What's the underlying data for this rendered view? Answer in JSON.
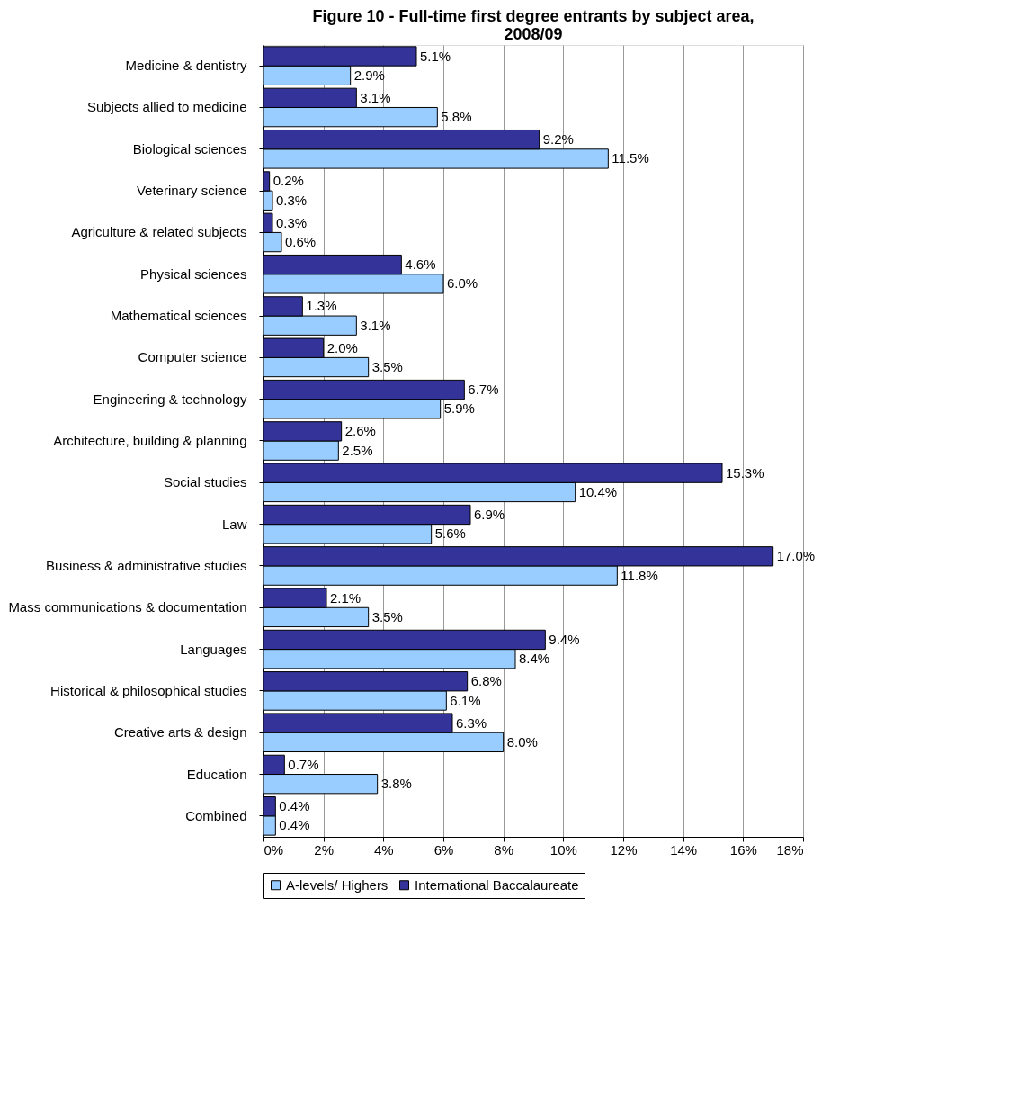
{
  "chart_data": {
    "type": "bar",
    "orientation": "horizontal",
    "title": "Figure 10 - Full-time first degree entrants by subject area, 2008/09",
    "categories": [
      "Medicine & dentistry",
      "Subjects allied to medicine",
      "Biological sciences",
      "Veterinary science",
      "Agriculture & related subjects",
      "Physical sciences",
      "Mathematical sciences",
      "Computer science",
      "Engineering & technology",
      "Architecture, building & planning",
      "Social studies",
      "Law",
      "Business & administrative studies",
      "Mass communications & documentation",
      "Languages",
      "Historical & philosophical studies",
      "Creative arts & design",
      "Education",
      "Combined"
    ],
    "series": [
      {
        "name": "A-levels/ Highers",
        "color": "#99ccff",
        "values": [
          2.9,
          5.8,
          11.5,
          0.3,
          0.6,
          6.0,
          3.1,
          3.5,
          5.9,
          2.5,
          10.4,
          5.6,
          11.8,
          3.5,
          8.4,
          6.1,
          8.0,
          3.8,
          0.4
        ],
        "value_labels": [
          "2.9%",
          "5.8%",
          "11.5%",
          "0.3%",
          "0.6%",
          "6.0%",
          "3.1%",
          "3.5%",
          "5.9%",
          "2.5%",
          "10.4%",
          "5.6%",
          "11.8%",
          "3.5%",
          "8.4%",
          "6.1%",
          "8.0%",
          "3.8%",
          "0.4%"
        ]
      },
      {
        "name": "International Baccalaureate",
        "color": "#333399",
        "values": [
          5.1,
          3.1,
          9.2,
          0.2,
          0.3,
          4.6,
          1.3,
          2.0,
          6.7,
          2.6,
          15.3,
          6.9,
          17.0,
          2.1,
          9.4,
          6.8,
          6.3,
          0.7,
          0.4
        ],
        "value_labels": [
          "5.1%",
          "3.1%",
          "9.2%",
          "0.2%",
          "0.3%",
          "4.6%",
          "1.3%",
          "2.0%",
          "6.7%",
          "2.6%",
          "15.3%",
          "6.9%",
          "17.0%",
          "2.1%",
          "9.4%",
          "6.8%",
          "6.3%",
          "0.7%",
          "0.4%"
        ]
      }
    ],
    "xlim": [
      0,
      18
    ],
    "xticks": [
      {
        "value": 0,
        "label": "0%"
      },
      {
        "value": 2,
        "label": "2%"
      },
      {
        "value": 4,
        "label": "4%"
      },
      {
        "value": 6,
        "label": "6%"
      },
      {
        "value": 8,
        "label": "8%"
      },
      {
        "value": 10,
        "label": "10%"
      },
      {
        "value": 12,
        "label": "12%"
      },
      {
        "value": 14,
        "label": "14%"
      },
      {
        "value": 16,
        "label": "16%"
      },
      {
        "value": 18,
        "label": "18%"
      }
    ],
    "grid": "x",
    "legend": "bottom"
  }
}
